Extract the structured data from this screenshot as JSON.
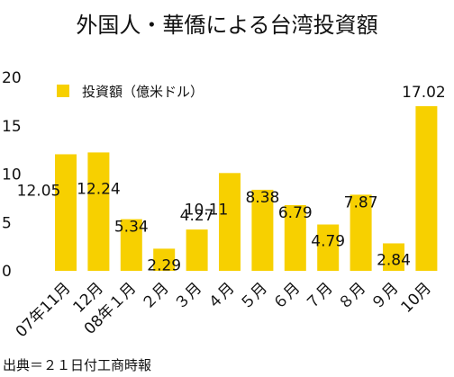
{
  "chart_data": {
    "type": "bar",
    "title": "外国人・華僑による台湾投資額",
    "legend": {
      "label": "投資額（億米ドル）",
      "color": "#F7D000",
      "placement": "top-left"
    },
    "categories": [
      "07年11月",
      "12月",
      "08年１月",
      "２月",
      "３月",
      "４月",
      "５月",
      "６月",
      "７月",
      "８月",
      "９月",
      "10月"
    ],
    "series": [
      {
        "name": "投資額（億米ドル）",
        "values": [
          12.05,
          12.24,
          5.34,
          2.29,
          4.27,
          10.11,
          8.38,
          6.79,
          4.79,
          7.87,
          2.84,
          17.02
        ]
      }
    ],
    "data_labels": [
      "12.05",
      "12.24",
      "5.34",
      "2.29",
      "4.27",
      "10.11",
      "8.38",
      "6.79",
      "4.79",
      "7.87",
      "2.84",
      "17.02"
    ],
    "yticks": [
      "0",
      "5",
      "10",
      "15",
      "20"
    ],
    "ylim": [
      0,
      20
    ],
    "grid": false,
    "bar_color": "#F7D000",
    "source": "出典＝２１日付工商時報"
  }
}
